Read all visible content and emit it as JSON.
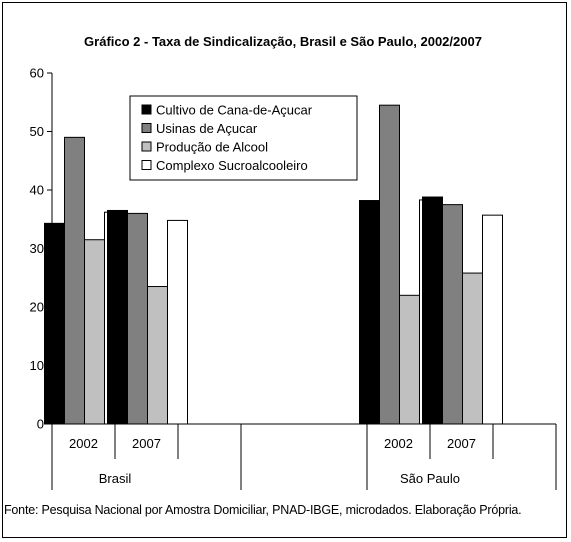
{
  "chart_data": {
    "type": "bar",
    "title": "Gráfico 2 - Taxa de Sindicalização, Brasil e São Paulo, 2002/2007",
    "xlabel": "",
    "ylabel": "",
    "ylim": [
      0,
      60
    ],
    "yticks": [
      "0",
      "10",
      "20",
      "30",
      "40",
      "50",
      "60"
    ],
    "groups": [
      {
        "name": "Brasil",
        "years": [
          "2002",
          "2007"
        ]
      },
      {
        "name": "São Paulo",
        "years": [
          "2002",
          "2007"
        ]
      }
    ],
    "categories": [
      "2002",
      "2007",
      "2002",
      "2007"
    ],
    "series": [
      {
        "name": "Cultivo de Cana-de-Açucar",
        "color": "#000000",
        "values": [
          34.3,
          36.5,
          38.2,
          38.8
        ]
      },
      {
        "name": "Usinas de Açucar",
        "color": "#808080",
        "values": [
          49.0,
          36.0,
          54.5,
          37.5
        ]
      },
      {
        "name": "Produção de Alcool",
        "color": "#c0c0c0",
        "values": [
          31.5,
          23.5,
          22.0,
          25.8
        ]
      },
      {
        "name": "Complexo Sucroalcooleiro",
        "color": "#ffffff",
        "values": [
          36.2,
          34.8,
          38.3,
          35.7
        ]
      }
    ],
    "grid": false,
    "legend": "top-center"
  },
  "source_note": "Fonte: Pesquisa Nacional por Amostra Domiciliar, PNAD-IBGE, microdados. Elaboração Própria."
}
